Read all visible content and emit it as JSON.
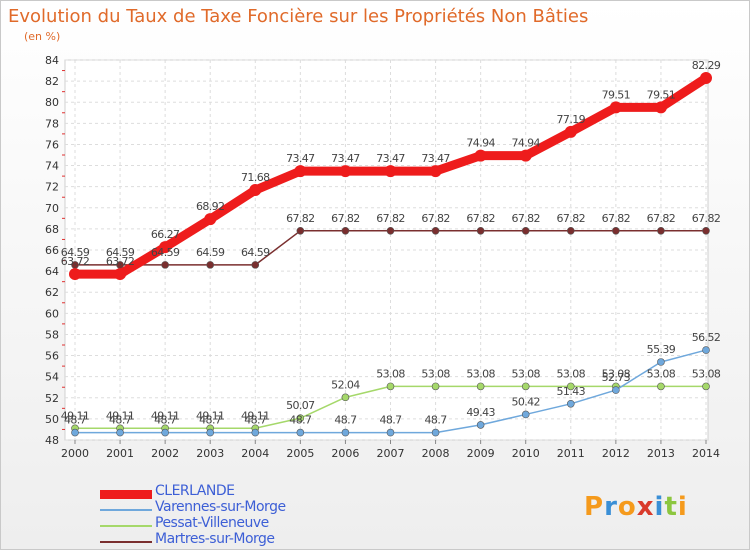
{
  "header": {
    "title": "Evolution du Taux de Taxe Foncière sur les Propriétés Non Bâties",
    "unit": "(en %)"
  },
  "logo": {
    "text": "Proxiti",
    "colors": [
      "#f59a1c",
      "#3a8fd6",
      "#f59a1c",
      "#d93a2b",
      "#3a8fd6",
      "#8cc63f",
      "#f59a1c"
    ]
  },
  "chart_data": {
    "type": "line",
    "x": [
      "2000",
      "2001",
      "2002",
      "2003",
      "2004",
      "2005",
      "2006",
      "2007",
      "2008",
      "2009",
      "2010",
      "2011",
      "2012",
      "2013",
      "2014"
    ],
    "ylim": [
      48,
      84
    ],
    "yticks": [
      48,
      50,
      52,
      54,
      56,
      58,
      60,
      62,
      64,
      66,
      68,
      70,
      72,
      74,
      76,
      78,
      80,
      82,
      84
    ],
    "grid": true,
    "legend_position": "bottom-left",
    "series": [
      {
        "name": "CLERLANDE",
        "color": "#ee1c1c",
        "values": [
          63.72,
          63.72,
          66.27,
          68.92,
          71.68,
          73.47,
          73.47,
          73.47,
          73.47,
          74.94,
          74.94,
          77.19,
          79.51,
          79.51,
          82.29
        ],
        "labels": [
          "63.72",
          "63.72",
          "66.27",
          "68.92",
          "71.68",
          "73.47",
          "73.47",
          "73.47",
          "73.47",
          "74.94",
          "74.94",
          "77.19",
          "79.51",
          "79.51",
          "82.29"
        ]
      },
      {
        "name": "Varennes-sur-Morge",
        "color": "#6fa8dc",
        "values": [
          48.7,
          48.7,
          48.7,
          48.7,
          48.7,
          48.7,
          48.7,
          48.7,
          48.7,
          49.43,
          50.42,
          51.43,
          52.73,
          55.39,
          56.52
        ],
        "labels": [
          "48.7",
          "48.7",
          "48.7",
          "48.7",
          "48.7",
          "48.7",
          "48.7",
          "48.7",
          "48.7",
          "49.43",
          "50.42",
          "51.43",
          "52.73",
          "55.39",
          "56.52"
        ]
      },
      {
        "name": "Pessat-Villeneuve",
        "color": "#a5d86a",
        "values": [
          49.11,
          49.11,
          49.11,
          49.11,
          49.11,
          50.07,
          52.04,
          53.08,
          53.08,
          53.08,
          53.08,
          53.08,
          53.08,
          53.08,
          53.08
        ],
        "labels": [
          "49.11",
          "49.11",
          "49.11",
          "49.11",
          "49.11",
          "50.07",
          "52.04",
          "53.08",
          "53.08",
          "53.08",
          "53.08",
          "53.08",
          "53.08",
          "53.08",
          "53.08"
        ]
      },
      {
        "name": "Martres-sur-Morge",
        "color": "#7a2f2f",
        "values": [
          64.59,
          64.59,
          64.59,
          64.59,
          64.59,
          67.82,
          67.82,
          67.82,
          67.82,
          67.82,
          67.82,
          67.82,
          67.82,
          67.82,
          67.82
        ],
        "labels": [
          "64.59",
          "64.59",
          "64.59",
          "64.59",
          "64.59",
          "67.82",
          "67.82",
          "67.82",
          "67.82",
          "67.82",
          "67.82",
          "67.82",
          "67.82",
          "67.82",
          "67.82"
        ]
      }
    ]
  }
}
